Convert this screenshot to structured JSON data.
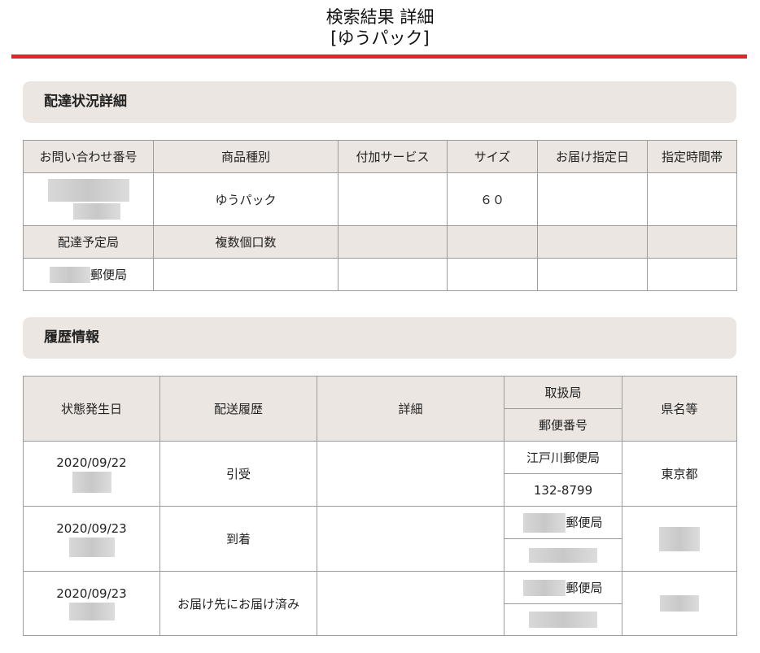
{
  "header": {
    "title_line1": "検索結果 詳細",
    "title_line2": "[ゆうパック]",
    "accent_color": "#e0262a"
  },
  "delivery": {
    "section_title": "配達状況詳細",
    "headers": [
      "お問い合わせ番号",
      "商品種別",
      "付加サービス",
      "サイズ",
      "お届け指定日",
      "指定時間帯"
    ],
    "row": {
      "tracking_number": "",
      "product_type": "ゆうパック",
      "additional_service": "",
      "size": "６０",
      "designated_date": "",
      "designated_time": ""
    },
    "headers2": [
      "配達予定局",
      "複数個口数"
    ],
    "row2": {
      "office_suffix": "郵便局"
    }
  },
  "history": {
    "section_title": "履歴情報",
    "headers": {
      "date": "状態発生日",
      "status": "配送履歴",
      "detail": "詳細",
      "office": "取扱局",
      "postal": "郵便番号",
      "prefecture": "県名等"
    },
    "rows": [
      {
        "date": "2020/09/22",
        "status": "引受",
        "office": "江戸川郵便局",
        "postal": "132-8799",
        "prefecture": "東京都"
      },
      {
        "date": "2020/09/23",
        "status": "到着",
        "office_suffix": "郵便局"
      },
      {
        "date": "2020/09/23",
        "status": "お届け先にお届け済み",
        "office_suffix": "郵便局"
      }
    ]
  }
}
